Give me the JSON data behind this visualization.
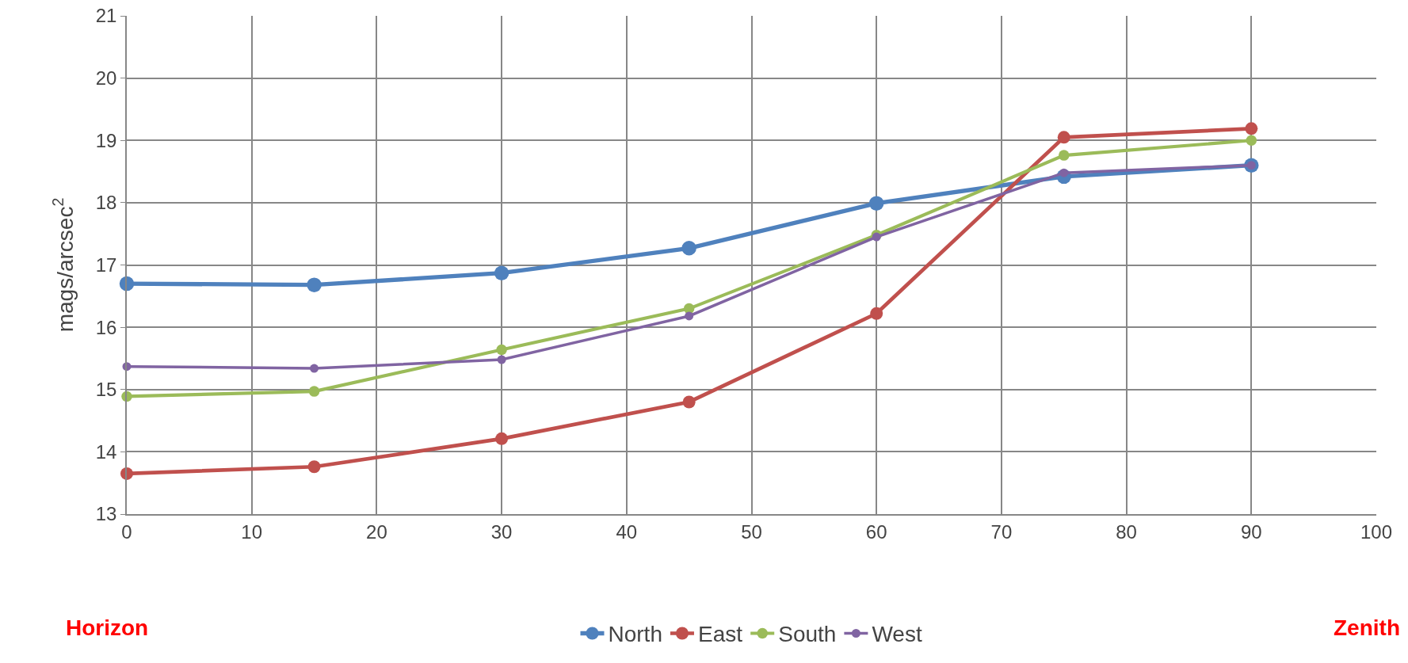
{
  "chart_data": {
    "type": "line",
    "ylabel": "mags/arcsec$^{2}$",
    "x": [
      0,
      15,
      30,
      45,
      60,
      75,
      90
    ],
    "series": [
      {
        "name": "North",
        "color": "#4f81bd",
        "values": [
          16.7,
          16.68,
          16.87,
          17.27,
          17.99,
          18.42,
          18.6
        ]
      },
      {
        "name": "East",
        "color": "#c0504d",
        "values": [
          13.65,
          13.76,
          14.21,
          14.8,
          16.22,
          19.05,
          19.19
        ]
      },
      {
        "name": "South",
        "color": "#9bbb59",
        "values": [
          14.89,
          14.97,
          15.64,
          16.3,
          17.48,
          18.76,
          19.0
        ]
      },
      {
        "name": "West",
        "color": "#8064a2",
        "values": [
          15.37,
          15.34,
          15.48,
          16.18,
          17.45,
          18.48,
          18.6
        ]
      }
    ],
    "xlim": [
      0,
      100
    ],
    "xticks": [
      0,
      10,
      20,
      30,
      40,
      50,
      60,
      70,
      80,
      90,
      100
    ],
    "ylim": [
      13,
      21
    ],
    "yticks": [
      13,
      14,
      15,
      16,
      17,
      18,
      19,
      20,
      21
    ],
    "grid": true,
    "legend": "bottom",
    "marker": "circle",
    "line_style": "solid",
    "annotations": [
      "Horizon",
      "Zenith"
    ]
  }
}
